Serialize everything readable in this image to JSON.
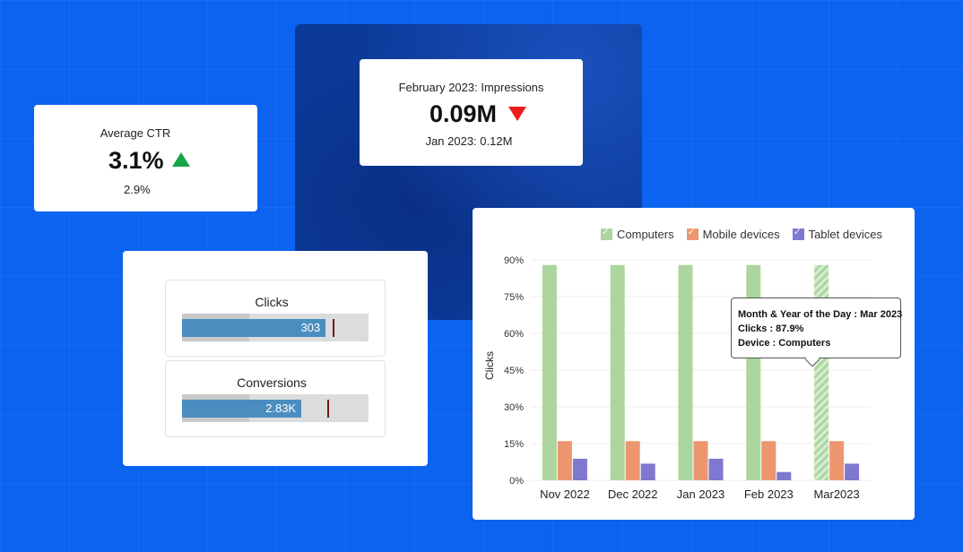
{
  "kpi_ctr": {
    "title": "Average CTR",
    "value": "3.1%",
    "trend": "up",
    "compare": "2.9%",
    "trend_color": "#17a54a"
  },
  "kpi_impressions": {
    "title": "February 2023: Impressions",
    "value": "0.09M",
    "trend": "down",
    "compare": "Jan 2023: 0.12M",
    "trend_color": "#ef1c1c"
  },
  "bullets": [
    {
      "label": "Clicks",
      "value_label": "303",
      "fill": 0.77,
      "target": 0.81
    },
    {
      "label": "Conversions",
      "value_label": "2.83K",
      "fill": 0.64,
      "target": 0.78
    }
  ],
  "tooltip": {
    "line1": "Month & Year of the Day : Mar 2023",
    "line2": "Clicks : 87.9%",
    "line3": "Device : Computers"
  },
  "chart_data": {
    "type": "bar",
    "categories": [
      "Nov 2022",
      "Dec 2022",
      "Jan 2023",
      "Feb 2023",
      "Mar2023"
    ],
    "ylabel": "Clicks",
    "xlabel": "",
    "y_ticks": [
      0,
      15,
      30,
      45,
      60,
      75,
      90
    ],
    "y_tick_labels": [
      "0%",
      "15%",
      "30%",
      "45%",
      "60%",
      "75%",
      "90%"
    ],
    "ylim": [
      0,
      90
    ],
    "grid": true,
    "legend": "top",
    "highlighted": {
      "series": "Computers",
      "category": "Mar2023"
    },
    "series": [
      {
        "name": "Computers",
        "color": "#acd5a0",
        "values": [
          87.9,
          87.9,
          87.9,
          87.9,
          87.9
        ]
      },
      {
        "name": "Mobile devices",
        "color": "#ec9670",
        "values": [
          16,
          16,
          16,
          16,
          16
        ]
      },
      {
        "name": "Tablet devices",
        "color": "#7f78cf",
        "values": [
          8.8,
          6.8,
          8.8,
          3.4,
          6.8
        ]
      }
    ]
  }
}
